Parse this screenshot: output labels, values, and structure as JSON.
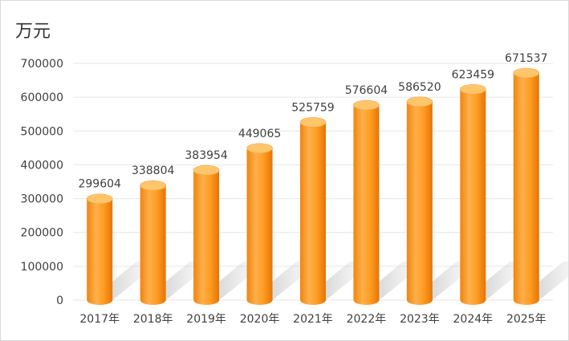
{
  "chart_data": {
    "type": "bar",
    "unit_label": "万元",
    "categories": [
      "2017年",
      "2018年",
      "2019年",
      "2020年",
      "2021年",
      "2022年",
      "2023年",
      "2024年",
      "2025年"
    ],
    "values": [
      299604,
      338804,
      383954,
      449065,
      525759,
      576604,
      586520,
      623459,
      671537
    ],
    "data_labels": [
      "299604",
      "338804",
      "383954",
      "449065",
      "525759",
      "576604",
      "586520",
      "623459",
      "671537"
    ],
    "yticks": [
      "0",
      "100000",
      "200000",
      "300000",
      "400000",
      "500000",
      "600000",
      "700000"
    ],
    "ylim": [
      0,
      700000
    ],
    "grid": true,
    "bar_style": "3d-cylinder",
    "colors": {
      "bar": "#ff9a1e",
      "bar_light": "#ffc56b",
      "bar_dark": "#e8780a",
      "grid": "#e6e6e6"
    }
  }
}
